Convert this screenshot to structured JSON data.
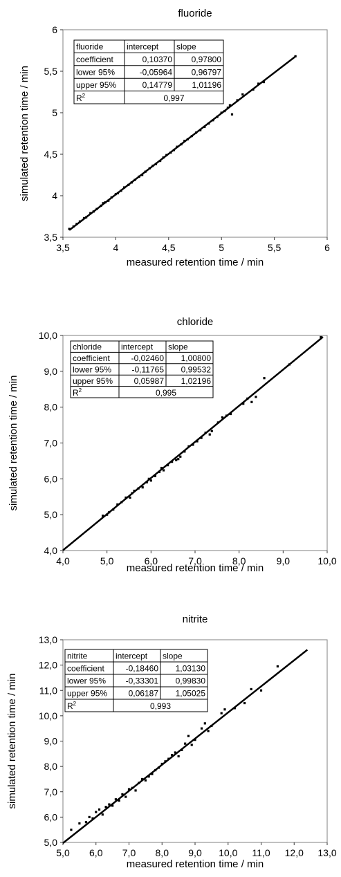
{
  "chart_data": [
    {
      "type": "scatter",
      "title": "fluoride",
      "xlabel": "measured retention time / min",
      "ylabel": "simulated retention time / min",
      "xlim": [
        3.5,
        6
      ],
      "ylim": [
        3.5,
        6
      ],
      "x_ticks": [
        "3,5",
        "4",
        "4,5",
        "5",
        "5,5",
        "6"
      ],
      "y_ticks": [
        "3,5",
        "4",
        "4,5",
        "5",
        "5,5",
        "6"
      ],
      "grid": false,
      "legend": "none",
      "fit_line": {
        "intercept": 0.1037,
        "slope": 0.978,
        "x_range": [
          3.56,
          5.7
        ]
      },
      "series": [
        {
          "x": [
            3.56,
            3.6,
            3.63,
            3.66,
            3.7,
            3.72,
            3.76,
            3.79,
            3.82,
            3.86,
            3.88,
            3.9,
            3.93,
            3.96,
            4.0,
            4.02,
            4.05,
            4.08,
            4.12,
            4.15,
            4.18,
            4.22,
            4.25,
            4.28,
            4.32,
            4.35,
            4.38,
            4.42,
            4.45,
            4.48,
            4.52,
            4.55,
            4.58,
            4.62,
            4.65,
            4.68,
            4.72,
            4.76,
            4.8,
            4.84,
            4.88,
            4.92,
            4.96,
            5.0,
            5.03,
            5.06,
            5.08,
            5.1,
            5.15,
            5.2,
            5.3,
            5.35,
            5.4,
            5.7
          ],
          "y": [
            3.6,
            3.63,
            3.66,
            3.69,
            3.73,
            3.74,
            3.79,
            3.81,
            3.84,
            3.88,
            3.91,
            3.92,
            3.94,
            3.98,
            4.02,
            4.03,
            4.06,
            4.1,
            4.13,
            4.16,
            4.19,
            4.23,
            4.25,
            4.29,
            4.33,
            4.36,
            4.38,
            4.42,
            4.46,
            4.49,
            4.52,
            4.55,
            4.59,
            4.62,
            4.66,
            4.68,
            4.72,
            4.76,
            4.79,
            4.83,
            4.87,
            4.91,
            4.95,
            5.0,
            5.02,
            5.06,
            5.09,
            4.98,
            5.15,
            5.22,
            5.28,
            5.35,
            5.37,
            5.68
          ]
        }
      ],
      "table": {
        "header": [
          "fluoride",
          "intercept",
          "slope"
        ],
        "rows": [
          [
            "coefficient",
            "0,10370",
            "0,97800"
          ],
          [
            "lower 95%",
            "-0,05964",
            "0,96797"
          ],
          [
            "upper 95%",
            "0,14779",
            "1,01196"
          ]
        ],
        "r2_label": "R",
        "r2_sup": "2",
        "r2_value": "0,997"
      }
    },
    {
      "type": "scatter",
      "title": "chloride",
      "xlabel": "measured retention time / min",
      "ylabel": "simulated retention time / min",
      "xlim": [
        4,
        10.3
      ],
      "ylim": [
        4,
        10.3
      ],
      "x_ticks": [
        "4,0",
        "5,0",
        "6,0",
        "7,0",
        "8,0",
        "9,0",
        "10,0"
      ],
      "y_ticks": [
        "4,0",
        "5,0",
        "6,0",
        "7,0",
        "8,0",
        "9,0",
        "10,0"
      ],
      "grid": false,
      "legend": "none",
      "fit_line": {
        "intercept": -0.0246,
        "slope": 1.008,
        "x_range": [
          4.0,
          10.2
        ]
      },
      "series": [
        {
          "x": [
            4.95,
            5.05,
            5.1,
            5.2,
            5.3,
            5.4,
            5.5,
            5.6,
            5.65,
            5.7,
            5.8,
            5.9,
            6.0,
            6.05,
            6.1,
            6.2,
            6.3,
            6.35,
            6.4,
            6.5,
            6.6,
            6.7,
            6.75,
            6.8,
            6.9,
            7.0,
            7.1,
            7.2,
            7.3,
            7.4,
            7.5,
            7.55,
            7.7,
            7.8,
            7.9,
            8.0,
            8.3,
            8.4,
            8.5,
            8.6,
            8.8,
            9.4,
            10.15
          ],
          "y": [
            5.02,
            5.05,
            5.12,
            5.2,
            5.35,
            5.42,
            5.55,
            5.55,
            5.68,
            5.75,
            5.82,
            5.85,
            6.0,
            6.1,
            6.05,
            6.18,
            6.3,
            6.42,
            6.35,
            6.5,
            6.6,
            6.65,
            6.68,
            6.75,
            6.9,
            7.05,
            7.1,
            7.2,
            7.3,
            7.45,
            7.4,
            7.5,
            7.75,
            7.9,
            7.95,
            8.0,
            8.3,
            8.45,
            8.35,
            8.5,
            9.05,
            9.45,
            10.25
          ]
        }
      ],
      "table": {
        "header": [
          "chloride",
          "intercept",
          "slope"
        ],
        "rows": [
          [
            "coefficient",
            "-0,02460",
            "1,00800"
          ],
          [
            "lower 95%",
            "-0,11765",
            "0,99532"
          ],
          [
            "upper 95%",
            "0,05987",
            "1,02196"
          ]
        ],
        "r2_label": "R",
        "r2_sup": "2",
        "r2_value": "0,995"
      }
    },
    {
      "type": "scatter",
      "title": "nitrite",
      "xlabel": "measured retention time / min",
      "ylabel": "simulated retention time / min",
      "xlim": [
        5,
        13
      ],
      "ylim": [
        5,
        13
      ],
      "x_ticks": [
        "5,0",
        "6,0",
        "7,0",
        "8,0",
        "9,0",
        "10,0",
        "11,0",
        "12,0",
        "13,0"
      ],
      "y_ticks": [
        "5,0",
        "6,0",
        "7,0",
        "8,0",
        "9,0",
        "10,0",
        "11,0",
        "12,0",
        "13,0"
      ],
      "grid": false,
      "legend": "none",
      "fit_line": {
        "intercept": -0.1846,
        "slope": 1.0313,
        "x_range": [
          5.0,
          12.4
        ]
      },
      "series": [
        {
          "x": [
            5.25,
            5.5,
            5.7,
            5.8,
            5.9,
            6.0,
            6.1,
            6.2,
            6.3,
            6.4,
            6.5,
            6.6,
            6.7,
            6.8,
            6.9,
            7.0,
            7.1,
            7.2,
            7.3,
            7.4,
            7.5,
            7.6,
            7.7,
            7.8,
            7.9,
            8.0,
            8.1,
            8.2,
            8.3,
            8.4,
            8.5,
            8.6,
            8.7,
            8.8,
            8.9,
            9.0,
            9.2,
            9.3,
            9.4,
            9.5,
            9.8,
            9.9,
            10.2,
            10.5,
            10.7,
            11.0,
            11.5
          ],
          "y": [
            5.5,
            5.75,
            5.8,
            6.0,
            5.95,
            6.2,
            6.3,
            6.1,
            6.4,
            6.5,
            6.45,
            6.7,
            6.65,
            6.9,
            6.8,
            7.1,
            7.15,
            7.05,
            7.35,
            7.5,
            7.45,
            7.6,
            7.7,
            7.85,
            7.95,
            8.1,
            8.2,
            8.3,
            8.45,
            8.55,
            8.4,
            8.65,
            8.9,
            9.2,
            8.85,
            9.05,
            9.5,
            9.7,
            9.4,
            9.6,
            10.1,
            10.25,
            10.3,
            10.5,
            11.05,
            11.0,
            11.95
          ]
        }
      ],
      "table": {
        "header": [
          "nitrite",
          "intercept",
          "slope"
        ],
        "rows": [
          [
            "coefficient",
            "-0,18460",
            "1,03130"
          ],
          [
            "lower 95%",
            "-0,33301",
            "0,99830"
          ],
          [
            "upper 95%",
            "0,06187",
            "1,05025"
          ]
        ],
        "r2_label": "R",
        "r2_sup": "2",
        "r2_value": "0,993"
      }
    }
  ]
}
